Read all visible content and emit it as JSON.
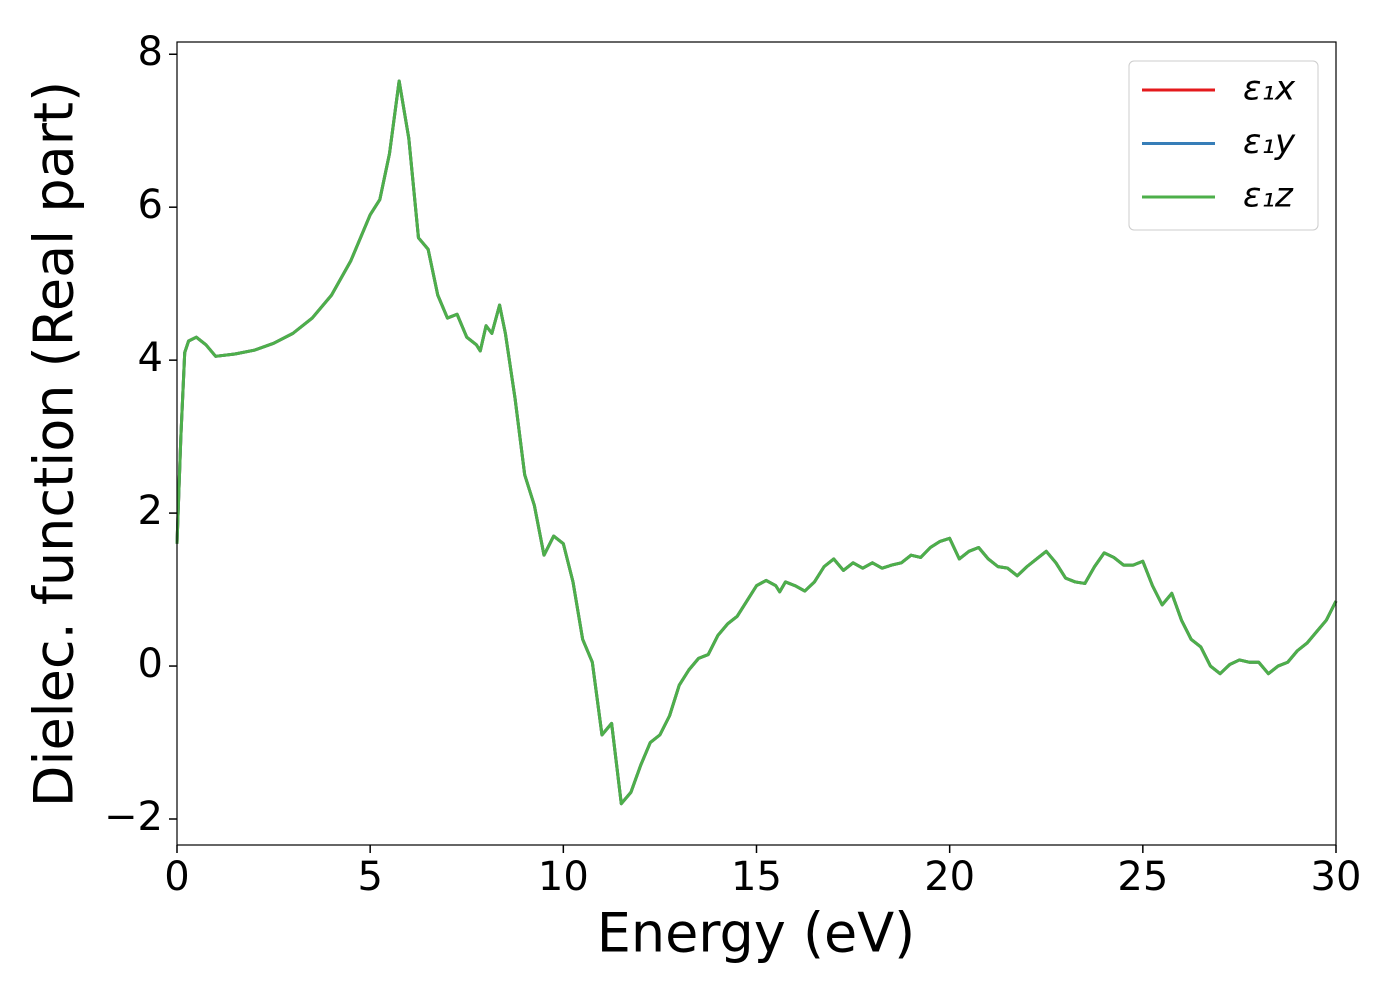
{
  "chart_data": {
    "type": "line",
    "xlabel": "Energy (eV)",
    "ylabel": "Dielec. function (Real part)",
    "xlim": [
      0,
      30
    ],
    "ylim": [
      -2.34,
      8.16
    ],
    "xticks": [
      0,
      5,
      10,
      15,
      20,
      25,
      30
    ],
    "yticks": [
      {
        "value": -2,
        "label": "−2"
      },
      0,
      2,
      4,
      6,
      8
    ],
    "legend": "upper right",
    "x": [
      0,
      0.1,
      0.2,
      0.3,
      0.5,
      0.75,
      1.0,
      1.5,
      2,
      2.5,
      3,
      3.5,
      4,
      4.5,
      5,
      5.25,
      5.5,
      5.75,
      6.0,
      6.25,
      6.5,
      6.75,
      7.0,
      7.25,
      7.5,
      7.75,
      7.85,
      8.0,
      8.15,
      8.35,
      8.5,
      8.75,
      9.0,
      9.25,
      9.5,
      9.75,
      10.0,
      10.25,
      10.5,
      10.75,
      11.0,
      11.25,
      11.5,
      11.75,
      12.0,
      12.25,
      12.5,
      12.75,
      13.0,
      13.25,
      13.5,
      13.75,
      14.0,
      14.25,
      14.5,
      14.75,
      15.0,
      15.25,
      15.5,
      15.6,
      15.75,
      16.0,
      16.25,
      16.5,
      16.75,
      17.0,
      17.25,
      17.5,
      17.75,
      18.0,
      18.25,
      18.5,
      18.75,
      19.0,
      19.25,
      19.5,
      19.75,
      20.0,
      20.25,
      20.5,
      20.75,
      21.0,
      21.25,
      21.5,
      21.75,
      22.0,
      22.25,
      22.5,
      22.75,
      23.0,
      23.25,
      23.5,
      23.75,
      24.0,
      24.25,
      24.5,
      24.75,
      25.0,
      25.25,
      25.5,
      25.75,
      26.0,
      26.25,
      26.5,
      26.75,
      27.0,
      27.25,
      27.5,
      27.75,
      28.0,
      28.25,
      28.5,
      28.75,
      29.0,
      29.25,
      29.5,
      29.75,
      30.0
    ],
    "series": [
      {
        "name": "ε₁x",
        "color": "#e41a1c",
        "values": [
          1.6,
          3.0,
          4.1,
          4.25,
          4.3,
          4.2,
          4.05,
          4.08,
          4.13,
          4.22,
          4.35,
          4.55,
          4.85,
          5.3,
          5.9,
          6.1,
          6.7,
          7.65,
          6.9,
          5.6,
          5.45,
          4.85,
          4.55,
          4.6,
          4.3,
          4.2,
          4.12,
          4.45,
          4.35,
          4.72,
          4.35,
          3.5,
          2.5,
          2.1,
          1.45,
          1.7,
          1.6,
          1.1,
          0.35,
          0.05,
          -0.9,
          -0.75,
          -1.8,
          -1.65,
          -1.3,
          -1.0,
          -0.9,
          -0.65,
          -0.25,
          -0.05,
          0.1,
          0.15,
          0.4,
          0.55,
          0.65,
          0.85,
          1.05,
          1.12,
          1.05,
          0.97,
          1.1,
          1.05,
          0.98,
          1.1,
          1.3,
          1.4,
          1.25,
          1.35,
          1.28,
          1.35,
          1.28,
          1.32,
          1.35,
          1.45,
          1.42,
          1.55,
          1.63,
          1.67,
          1.4,
          1.5,
          1.55,
          1.4,
          1.3,
          1.28,
          1.18,
          1.3,
          1.4,
          1.5,
          1.35,
          1.15,
          1.1,
          1.08,
          1.3,
          1.48,
          1.42,
          1.32,
          1.32,
          1.37,
          1.05,
          0.8,
          0.95,
          0.6,
          0.35,
          0.25,
          0.0,
          -0.1,
          0.02,
          0.08,
          0.05,
          0.05,
          -0.1,
          0.0,
          0.05,
          0.2,
          0.3,
          0.45,
          0.6,
          0.85
        ]
      },
      {
        "name": "ε₁y",
        "color": "#377eb8",
        "values": [
          1.6,
          3.0,
          4.1,
          4.25,
          4.3,
          4.2,
          4.05,
          4.08,
          4.13,
          4.22,
          4.35,
          4.55,
          4.85,
          5.3,
          5.9,
          6.1,
          6.7,
          7.65,
          6.9,
          5.6,
          5.45,
          4.85,
          4.55,
          4.6,
          4.3,
          4.2,
          4.12,
          4.45,
          4.35,
          4.72,
          4.35,
          3.5,
          2.5,
          2.1,
          1.45,
          1.7,
          1.6,
          1.1,
          0.35,
          0.05,
          -0.9,
          -0.75,
          -1.8,
          -1.65,
          -1.3,
          -1.0,
          -0.9,
          -0.65,
          -0.25,
          -0.05,
          0.1,
          0.15,
          0.4,
          0.55,
          0.65,
          0.85,
          1.05,
          1.12,
          1.05,
          0.97,
          1.1,
          1.05,
          0.98,
          1.1,
          1.3,
          1.4,
          1.25,
          1.35,
          1.28,
          1.35,
          1.28,
          1.32,
          1.35,
          1.45,
          1.42,
          1.55,
          1.63,
          1.67,
          1.4,
          1.5,
          1.55,
          1.4,
          1.3,
          1.28,
          1.18,
          1.3,
          1.4,
          1.5,
          1.35,
          1.15,
          1.1,
          1.08,
          1.3,
          1.48,
          1.42,
          1.32,
          1.32,
          1.37,
          1.05,
          0.8,
          0.95,
          0.6,
          0.35,
          0.25,
          0.0,
          -0.1,
          0.02,
          0.08,
          0.05,
          0.05,
          -0.1,
          0.0,
          0.05,
          0.2,
          0.3,
          0.45,
          0.6,
          0.85
        ]
      },
      {
        "name": "ε₁z",
        "color": "#4daf4a",
        "values": [
          1.6,
          3.0,
          4.1,
          4.25,
          4.3,
          4.2,
          4.05,
          4.08,
          4.13,
          4.22,
          4.35,
          4.55,
          4.85,
          5.3,
          5.9,
          6.1,
          6.7,
          7.65,
          6.9,
          5.6,
          5.45,
          4.85,
          4.55,
          4.6,
          4.3,
          4.2,
          4.12,
          4.45,
          4.35,
          4.72,
          4.35,
          3.5,
          2.5,
          2.1,
          1.45,
          1.7,
          1.6,
          1.1,
          0.35,
          0.05,
          -0.9,
          -0.75,
          -1.8,
          -1.65,
          -1.3,
          -1.0,
          -0.9,
          -0.65,
          -0.25,
          -0.05,
          0.1,
          0.15,
          0.4,
          0.55,
          0.65,
          0.85,
          1.05,
          1.12,
          1.05,
          0.97,
          1.1,
          1.05,
          0.98,
          1.1,
          1.3,
          1.4,
          1.25,
          1.35,
          1.28,
          1.35,
          1.28,
          1.32,
          1.35,
          1.45,
          1.42,
          1.55,
          1.63,
          1.67,
          1.4,
          1.5,
          1.55,
          1.4,
          1.3,
          1.28,
          1.18,
          1.3,
          1.4,
          1.5,
          1.35,
          1.15,
          1.1,
          1.08,
          1.3,
          1.48,
          1.42,
          1.32,
          1.32,
          1.37,
          1.05,
          0.8,
          0.95,
          0.6,
          0.35,
          0.25,
          0.0,
          -0.1,
          0.02,
          0.08,
          0.05,
          0.05,
          -0.1,
          0.0,
          0.05,
          0.2,
          0.3,
          0.45,
          0.6,
          0.85
        ]
      }
    ]
  }
}
